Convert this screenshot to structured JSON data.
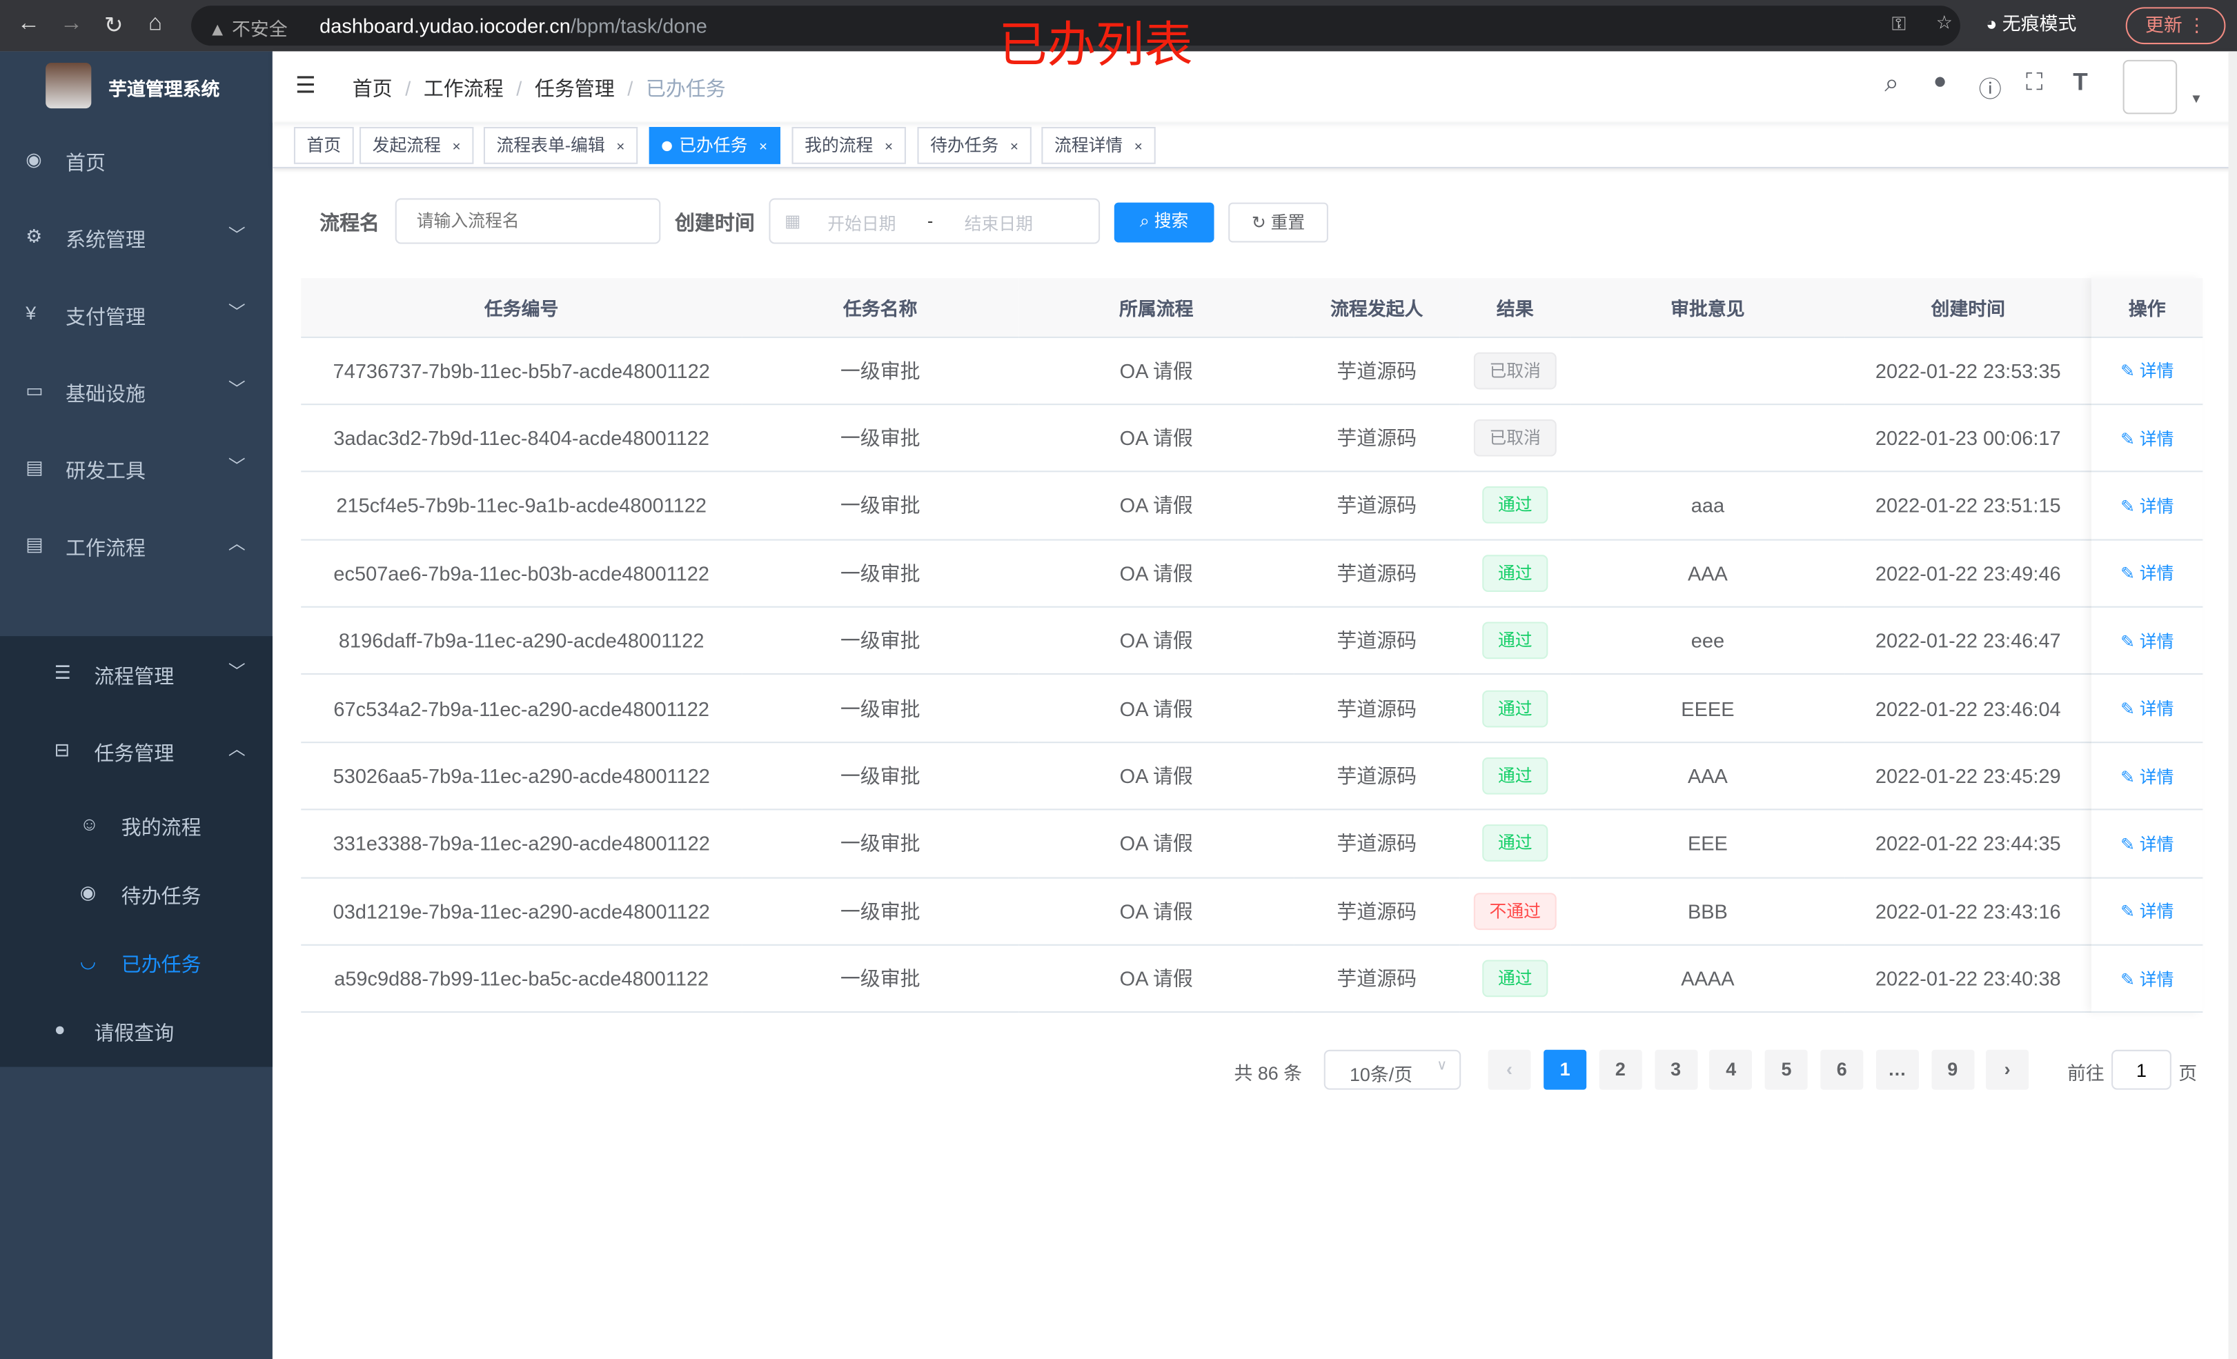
{
  "browser": {
    "insecure": "不安全",
    "host": "dashboard.yudao.iocoder.cn",
    "path": "/bpm/task/done",
    "incognito": "无痕模式",
    "update": "更新"
  },
  "annotation": "已办列表",
  "sidebar": {
    "brand": "芋道管理系统",
    "items": [
      {
        "label": "首页",
        "icon": "dashboard-icon",
        "ic": "◉",
        "chev": ""
      },
      {
        "label": "系统管理",
        "icon": "gear-icon",
        "ic": "⚙",
        "chev": "﹀"
      },
      {
        "label": "支付管理",
        "icon": "yen-icon",
        "ic": "¥",
        "chev": "﹀"
      },
      {
        "label": "基础设施",
        "icon": "monitor-icon",
        "ic": "▭",
        "chev": "﹀"
      },
      {
        "label": "研发工具",
        "icon": "toolbox-icon",
        "ic": "▤",
        "chev": "﹀"
      },
      {
        "label": "工作流程",
        "icon": "toolbox-icon",
        "ic": "▤",
        "chev": "︿"
      }
    ],
    "sub": [
      {
        "label": "流程管理",
        "icon": "list-icon",
        "ic": "☰",
        "chev": "﹀"
      },
      {
        "label": "任务管理",
        "icon": "tree-icon",
        "ic": "⊟",
        "chev": "︿"
      }
    ],
    "leaves": [
      {
        "label": "我的流程",
        "icon": "people-icon",
        "ic": "☺"
      },
      {
        "label": "待办任务",
        "icon": "eye-icon",
        "ic": "◉"
      },
      {
        "label": "已办任务",
        "icon": "eye-closed-icon",
        "ic": "◡",
        "active": true
      }
    ],
    "last": {
      "label": "请假查询",
      "icon": "user-icon",
      "ic": "●"
    }
  },
  "breadcrumb": [
    "首页",
    "工作流程",
    "任务管理",
    "已办任务"
  ],
  "tags": [
    {
      "label": "首页",
      "close": false
    },
    {
      "label": "发起流程",
      "close": true
    },
    {
      "label": "流程表单-编辑",
      "close": true
    },
    {
      "label": "已办任务",
      "close": true,
      "active": true
    },
    {
      "label": "我的流程",
      "close": true
    },
    {
      "label": "待办任务",
      "close": true
    },
    {
      "label": "流程详情",
      "close": true
    }
  ],
  "search": {
    "name_label": "流程名",
    "name_placeholder": "请输入流程名",
    "time_label": "创建时间",
    "start_placeholder": "开始日期",
    "sep": "-",
    "end_placeholder": "结束日期",
    "search": "搜索",
    "reset": "重置"
  },
  "table": {
    "headers": [
      "任务编号",
      "任务名称",
      "所属流程",
      "流程发起人",
      "结果",
      "审批意见",
      "创建时间",
      "操作"
    ],
    "action": "详情",
    "rows": [
      [
        "74736737-7b9b-11ec-b5b7-acde48001122",
        "一级审批",
        "OA 请假",
        "芋道源码",
        "已取消",
        "",
        "2022-01-22 23:53:35"
      ],
      [
        "3adac3d2-7b9d-11ec-8404-acde48001122",
        "一级审批",
        "OA 请假",
        "芋道源码",
        "已取消",
        "",
        "2022-01-23 00:06:17"
      ],
      [
        "215cf4e5-7b9b-11ec-9a1b-acde48001122",
        "一级审批",
        "OA 请假",
        "芋道源码",
        "通过",
        "aaa",
        "2022-01-22 23:51:15"
      ],
      [
        "ec507ae6-7b9a-11ec-b03b-acde48001122",
        "一级审批",
        "OA 请假",
        "芋道源码",
        "通过",
        "AAA",
        "2022-01-22 23:49:46"
      ],
      [
        "8196daff-7b9a-11ec-a290-acde48001122",
        "一级审批",
        "OA 请假",
        "芋道源码",
        "通过",
        "eee",
        "2022-01-22 23:46:47"
      ],
      [
        "67c534a2-7b9a-11ec-a290-acde48001122",
        "一级审批",
        "OA 请假",
        "芋道源码",
        "通过",
        "EEEE",
        "2022-01-22 23:46:04"
      ],
      [
        "53026aa5-7b9a-11ec-a290-acde48001122",
        "一级审批",
        "OA 请假",
        "芋道源码",
        "通过",
        "AAA",
        "2022-01-22 23:45:29"
      ],
      [
        "331e3388-7b9a-11ec-a290-acde48001122",
        "一级审批",
        "OA 请假",
        "芋道源码",
        "通过",
        "EEE",
        "2022-01-22 23:44:35"
      ],
      [
        "03d1219e-7b9a-11ec-a290-acde48001122",
        "一级审批",
        "OA 请假",
        "芋道源码",
        "不通过",
        "BBB",
        "2022-01-22 23:43:16"
      ],
      [
        "a59c9d88-7b99-11ec-ba5c-acde48001122",
        "一级审批",
        "OA 请假",
        "芋道源码",
        "通过",
        "AAAA",
        "2022-01-22 23:40:38"
      ]
    ]
  },
  "status_colors": {
    "已取消": "#909399",
    "通过": "#13ce66",
    "不通过": "#ff4949"
  },
  "pagination": {
    "total": "共 86 条",
    "page_size": "10条/页",
    "pages": [
      "1",
      "2",
      "3",
      "4",
      "5",
      "6",
      "…",
      "9"
    ],
    "current": "1",
    "goto": "前往",
    "goto_value": "1",
    "page_unit": "页"
  }
}
